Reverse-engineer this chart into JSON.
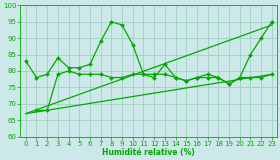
{
  "xlabel": "Humidité relative (%)",
  "xlim": [
    -0.5,
    23.5
  ],
  "ylim": [
    60,
    100
  ],
  "yticks": [
    60,
    65,
    70,
    75,
    80,
    85,
    90,
    95,
    100
  ],
  "xticks": [
    0,
    1,
    2,
    3,
    4,
    5,
    6,
    7,
    8,
    9,
    10,
    11,
    12,
    13,
    14,
    15,
    16,
    17,
    18,
    19,
    20,
    21,
    22,
    23
  ],
  "bg_color": "#cce8e8",
  "grid_color": "#99ccbb",
  "line_color": "#00aa00",
  "main_x": [
    0,
    1,
    2,
    3,
    4,
    5,
    6,
    7,
    8,
    9,
    10,
    11,
    12,
    13,
    14,
    15,
    16,
    17,
    18,
    19,
    20,
    21,
    22,
    23
  ],
  "main_y": [
    83,
    78,
    79,
    84,
    81,
    81,
    82,
    89,
    95,
    94,
    88,
    79,
    78,
    82,
    78,
    77,
    78,
    79,
    78,
    76,
    78,
    85,
    90,
    95
  ],
  "lower_x": [
    1,
    2,
    3,
    4,
    5,
    6,
    7,
    8,
    9,
    10,
    11,
    12,
    13,
    14,
    15,
    16,
    17,
    18,
    19,
    20,
    21,
    22,
    23
  ],
  "lower_y": [
    68,
    68,
    79,
    80,
    79,
    79,
    79,
    78,
    78,
    79,
    79,
    79,
    79,
    78,
    77,
    78,
    78,
    78,
    76,
    78,
    78,
    78,
    79
  ],
  "trend1_x": [
    0,
    23
  ],
  "trend1_y": [
    67,
    94
  ],
  "trend2_x": [
    0,
    23
  ],
  "trend2_y": [
    67,
    79
  ],
  "xlabel_fontsize": 5.5,
  "tick_fontsize": 5.0,
  "linewidth": 0.9,
  "markersize": 2.0
}
